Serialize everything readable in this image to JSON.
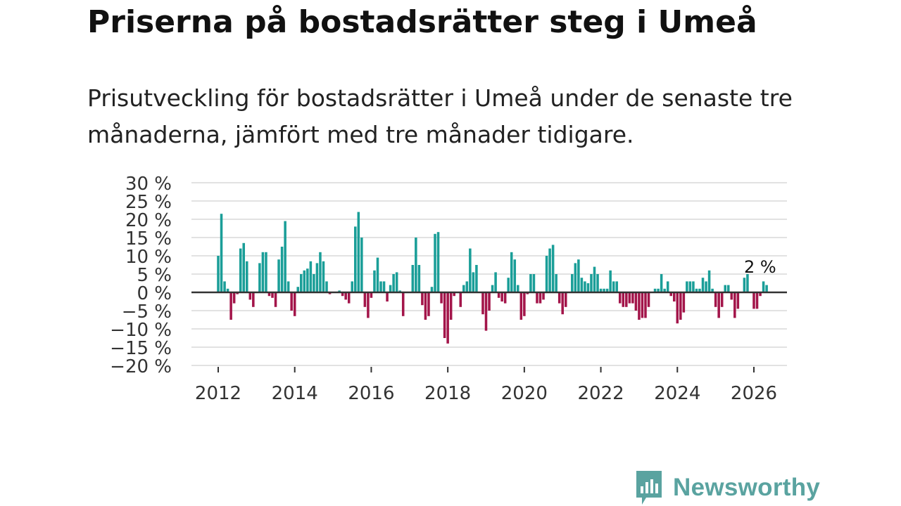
{
  "title": "Priserna på bostadsrätter steg i Umeå",
  "subtitle": "Prisutveckling för bostadsrätter i Umeå under de senaste tre månaderna, jämfört med tre månader tidigare.",
  "brand": {
    "name": "Newsworthy",
    "color": "#5aa3a0"
  },
  "colors": {
    "positive": "#1a9e98",
    "negative": "#a3154a",
    "grid": "#d9d9d9",
    "zero": "#333333"
  },
  "chart_data": {
    "type": "bar",
    "title": "Priserna på bostadsrätter steg i Umeå",
    "xlabel": "",
    "ylabel": "",
    "ylim": [
      -20,
      30
    ],
    "yticks": [
      30,
      25,
      20,
      15,
      10,
      5,
      0,
      -5,
      -10,
      -15,
      -20
    ],
    "ytick_labels": [
      "30 %",
      "25 %",
      "20 %",
      "15 %",
      "10 %",
      "5 %",
      "0 %",
      "−5 %",
      "−10 %",
      "−15 %",
      "−20 %"
    ],
    "xticks": [
      2012,
      2014,
      2016,
      2018,
      2020,
      2022,
      2024,
      2026
    ],
    "xtick_labels": [
      "2012",
      "2014",
      "2016",
      "2018",
      "2020",
      "2022",
      "2024",
      "2026"
    ],
    "series_start": {
      "year": 2012,
      "month": 1
    },
    "unit": "%",
    "values": [
      10,
      21.5,
      3,
      1,
      -7.5,
      -3,
      -0.5,
      12,
      13.5,
      8.5,
      -2,
      -4,
      0,
      8,
      11,
      11,
      -1,
      -1.5,
      -4,
      9,
      12.5,
      19.5,
      3,
      -5,
      -6.5,
      1.5,
      5,
      6,
      6.5,
      8.5,
      5,
      8,
      11,
      8.5,
      3,
      -0.5,
      0,
      0,
      0.5,
      -1,
      -2,
      -3,
      3,
      18,
      22,
      15,
      -4,
      -7,
      -1.5,
      6,
      9.5,
      3,
      3,
      -2.5,
      2,
      5,
      5.5,
      0.5,
      -6.5,
      0,
      0,
      7.5,
      15,
      7.5,
      -3.5,
      -7.5,
      -6.5,
      1.5,
      16,
      16.5,
      -3,
      -12.5,
      -14,
      -7.5,
      -1,
      0,
      -4,
      2,
      3,
      12,
      5.5,
      7.5,
      0,
      -6,
      -10.5,
      -5,
      2,
      5.5,
      -1.5,
      -2.5,
      -3,
      4,
      11,
      9,
      2,
      -7.5,
      -6.5,
      -0.5,
      5,
      5,
      -3,
      -3,
      -2,
      10,
      12,
      13,
      5,
      -3,
      -6,
      -4,
      0,
      5,
      8,
      9,
      4,
      3,
      2.5,
      5,
      7,
      5,
      1,
      1,
      1,
      6,
      3,
      3,
      -3,
      -4,
      -4,
      -3,
      -3,
      -5,
      -7.5,
      -7,
      -7,
      -4,
      0,
      1,
      1,
      5,
      1,
      3,
      -1,
      -2.5,
      -8.5,
      -7.5,
      -5.5,
      3,
      3,
      3,
      1,
      1,
      4,
      3,
      6,
      1,
      -4,
      -7,
      -4,
      2,
      2,
      -2,
      -7,
      -4.5,
      0,
      4,
      5,
      0,
      -4.5,
      -4.5,
      -1,
      3,
      2
    ],
    "annotation": {
      "text": "2 %",
      "value": 2,
      "position": "last-bar"
    }
  }
}
